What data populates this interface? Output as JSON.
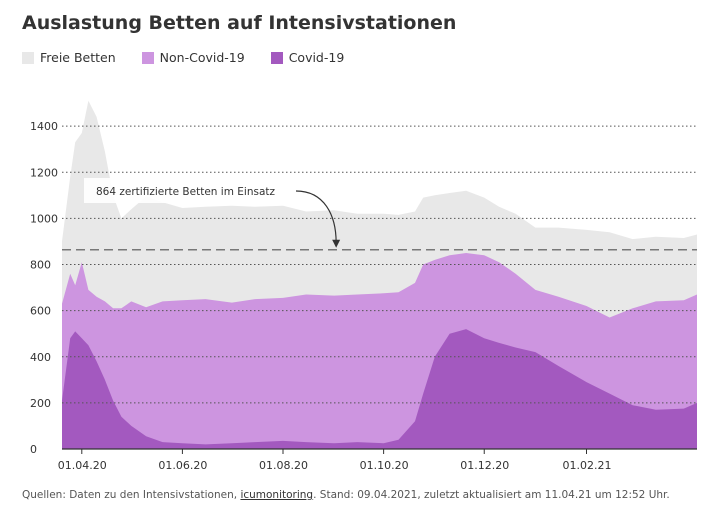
{
  "title": "Auslastung Betten auf Intensivstationen",
  "legend": [
    {
      "label": "Freie Betten",
      "color": "#e8e8e8"
    },
    {
      "label": "Non-Covid-19",
      "color": "#cd95e0"
    },
    {
      "label": "Covid-19",
      "color": "#a359bf"
    }
  ],
  "source": {
    "prefix": "Quellen: Daten zu den Intensivstationen,",
    "link": "icumonitoring",
    "suffix": ". Stand: 09.04.2021, zuletzt aktualisiert am 11.04.21 um 12:52 Uhr."
  },
  "chart_data": {
    "type": "area",
    "title": "Auslastung Betten auf Intensivstationen",
    "xlabel": "",
    "ylabel": "",
    "x_range": [
      "2020-03-20",
      "2021-04-09"
    ],
    "ylim": [
      0,
      1600
    ],
    "y_ticks": [
      0,
      200,
      400,
      600,
      800,
      1000,
      1200,
      1400
    ],
    "x_ticks": [
      "01.04.20",
      "01.06.20",
      "01.08.20",
      "01.10.20",
      "01.12.20",
      "01.02.21"
    ],
    "grid": "horizontal dotted",
    "legend_position": "top-left",
    "stacked": true,
    "x": [
      "2020-03-20",
      "2020-03-25",
      "2020-03-28",
      "2020-04-01",
      "2020-04-05",
      "2020-04-10",
      "2020-04-15",
      "2020-04-20",
      "2020-04-25",
      "2020-05-01",
      "2020-05-10",
      "2020-05-20",
      "2020-06-01",
      "2020-06-15",
      "2020-07-01",
      "2020-07-15",
      "2020-08-01",
      "2020-08-15",
      "2020-09-01",
      "2020-09-15",
      "2020-10-01",
      "2020-10-10",
      "2020-10-20",
      "2020-10-25",
      "2020-11-01",
      "2020-11-10",
      "2020-11-20",
      "2020-12-01",
      "2020-12-10",
      "2020-12-20",
      "2021-01-01",
      "2021-01-15",
      "2021-02-01",
      "2021-02-15",
      "2021-03-01",
      "2021-03-15",
      "2021-04-01",
      "2021-04-09"
    ],
    "series": [
      {
        "name": "Covid-19",
        "values": [
          210,
          480,
          510,
          480,
          450,
          380,
          300,
          210,
          140,
          100,
          55,
          30,
          25,
          20,
          25,
          30,
          35,
          30,
          25,
          30,
          25,
          40,
          120,
          240,
          400,
          500,
          520,
          480,
          460,
          440,
          420,
          360,
          290,
          240,
          190,
          170,
          175,
          200
        ]
      },
      {
        "name": "Non-Covid-19",
        "values": [
          420,
          280,
          200,
          330,
          240,
          280,
          340,
          400,
          470,
          540,
          560,
          610,
          620,
          630,
          610,
          620,
          620,
          640,
          640,
          640,
          650,
          640,
          600,
          560,
          420,
          340,
          330,
          360,
          350,
          320,
          270,
          300,
          330,
          330,
          420,
          470,
          470,
          470
        ]
      },
      {
        "name": "Freie Betten",
        "values": [
          270,
          420,
          620,
          560,
          820,
          780,
          650,
          490,
          390,
          400,
          480,
          430,
          400,
          400,
          420,
          400,
          400,
          360,
          370,
          350,
          345,
          335,
          310,
          290,
          280,
          270,
          270,
          250,
          240,
          260,
          270,
          300,
          330,
          370,
          300,
          280,
          270,
          260
        ]
      }
    ],
    "reference_line": {
      "value": 864,
      "label": "864 zertifizierte Betten im Einsatz",
      "x": "2020-09-01"
    }
  }
}
